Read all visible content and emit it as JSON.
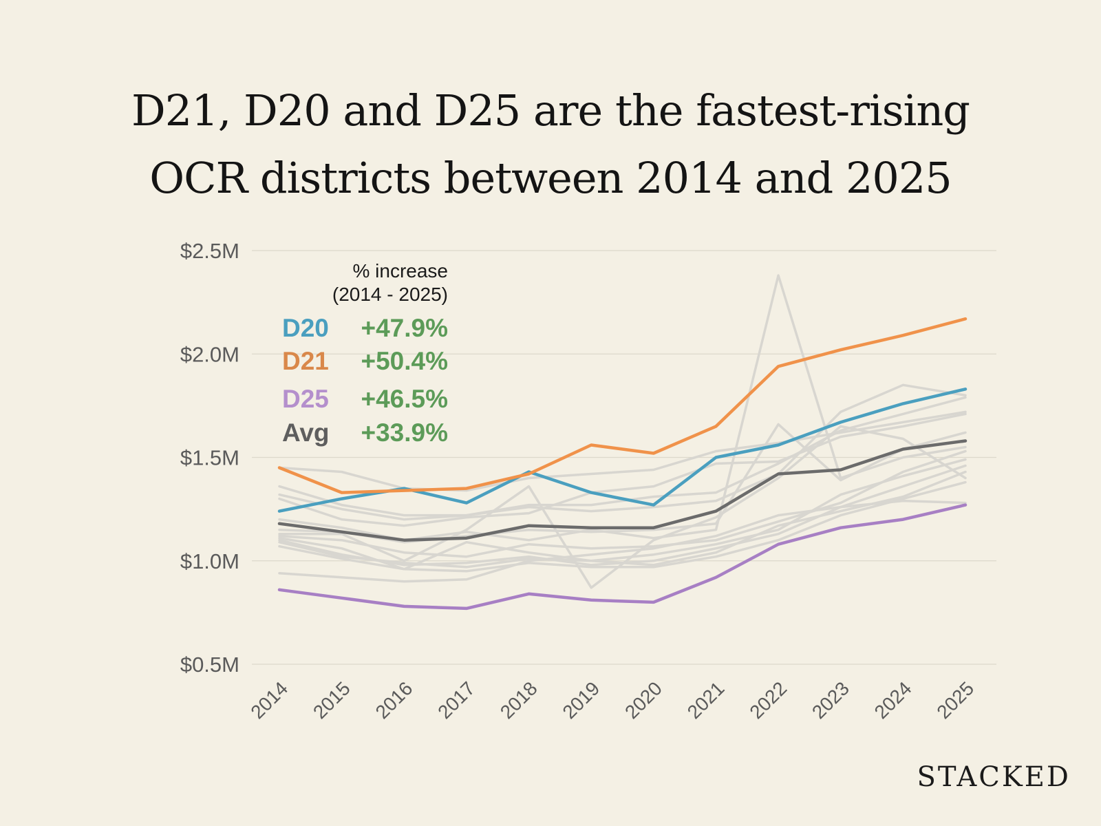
{
  "title": {
    "line1": "D21, D20 and D25 are the fastest-rising",
    "line2": "OCR districts between 2014 and 2025"
  },
  "brand": "STACKED",
  "chart_data": {
    "type": "line",
    "title": "D21, D20 and D25 are the fastest-rising OCR districts between 2014 and 2025",
    "xlabel": "",
    "ylabel": "",
    "x": [
      "2014",
      "2015",
      "2016",
      "2017",
      "2018",
      "2019",
      "2020",
      "2021",
      "2022",
      "2023",
      "2024",
      "2025"
    ],
    "ylim": [
      0.5,
      2.5
    ],
    "yticks": [
      2.5,
      2.0,
      1.5,
      1.0,
      0.5
    ],
    "ytick_labels": [
      "$2.5M",
      "$2.0M",
      "$1.5M",
      "$1.0M",
      "$0.5M"
    ],
    "grid": true,
    "legend": {
      "placement": "top-left",
      "title_line1": "% increase",
      "title_line2": "(2014 - 2025)",
      "entries": [
        {
          "name": "D20",
          "value": "+47.9%",
          "color": "#4a9fbf"
        },
        {
          "name": "D21",
          "value": "+50.4%",
          "color": "#d9884a"
        },
        {
          "name": "D25",
          "value": "+46.5%",
          "color": "#b48fcc"
        },
        {
          "name": "Avg",
          "value": "+33.9%",
          "color": "#5e5e5e"
        }
      ]
    },
    "background_color": "#d8d6d0",
    "background_series": [
      [
        1.45,
        1.43,
        1.35,
        1.34,
        1.4,
        1.42,
        1.44,
        1.53,
        1.57,
        1.62,
        1.67,
        1.72
      ],
      [
        1.36,
        1.27,
        1.22,
        1.22,
        1.27,
        1.27,
        1.31,
        1.33,
        1.47,
        1.63,
        1.71,
        1.79
      ],
      [
        1.32,
        1.25,
        1.2,
        1.22,
        1.26,
        1.24,
        1.26,
        1.29,
        1.42,
        1.72,
        1.85,
        1.8
      ],
      [
        1.3,
        1.2,
        1.17,
        1.21,
        1.23,
        1.33,
        1.36,
        1.47,
        1.48,
        1.6,
        1.65,
        1.71
      ],
      [
        1.2,
        1.16,
        1.1,
        1.14,
        1.1,
        1.15,
        1.11,
        1.15,
        2.38,
        1.4,
        1.5,
        1.55
      ],
      [
        1.15,
        1.14,
        1.09,
        1.12,
        1.15,
        1.14,
        1.15,
        1.18,
        1.66,
        1.39,
        1.54,
        1.62
      ],
      [
        1.13,
        1.13,
        1.0,
        1.15,
        1.36,
        0.87,
        1.1,
        1.21,
        1.4,
        1.65,
        1.59,
        1.4
      ],
      [
        1.12,
        1.1,
        1.04,
        1.02,
        1.08,
        1.06,
        1.07,
        1.1,
        1.19,
        1.28,
        1.43,
        1.53
      ],
      [
        1.11,
        1.06,
        0.96,
        1.09,
        1.04,
        1.0,
        1.03,
        1.08,
        1.15,
        1.32,
        1.41,
        1.49
      ],
      [
        1.1,
        1.03,
        0.98,
        0.99,
        1.02,
        0.98,
        1.0,
        1.06,
        1.13,
        1.26,
        1.36,
        1.46
      ],
      [
        1.09,
        1.02,
        0.99,
        0.97,
        1.01,
        1.0,
        0.98,
        1.04,
        1.17,
        1.24,
        1.31,
        1.43
      ],
      [
        1.07,
        1.01,
        0.96,
        0.95,
        0.99,
        0.97,
        0.97,
        1.02,
        1.1,
        1.22,
        1.3,
        1.38
      ],
      [
        0.94,
        0.92,
        0.9,
        0.91,
        1.0,
        1.03,
        1.06,
        1.12,
        1.22,
        1.26,
        1.29,
        1.28
      ]
    ],
    "series": [
      {
        "name": "D20",
        "color": "#4a9fbf",
        "values": [
          1.24,
          1.3,
          1.35,
          1.28,
          1.43,
          1.33,
          1.27,
          1.5,
          1.56,
          1.67,
          1.76,
          1.83
        ]
      },
      {
        "name": "D21",
        "color": "#f0924a",
        "values": [
          1.45,
          1.33,
          1.34,
          1.35,
          1.42,
          1.56,
          1.52,
          1.65,
          1.94,
          2.02,
          2.09,
          2.17
        ]
      },
      {
        "name": "D25",
        "color": "#a77fc4",
        "values": [
          0.86,
          0.82,
          0.78,
          0.77,
          0.84,
          0.81,
          0.8,
          0.92,
          1.08,
          1.16,
          1.2,
          1.27
        ]
      },
      {
        "name": "Avg",
        "color": "#6b6b6b",
        "values": [
          1.18,
          1.14,
          1.1,
          1.11,
          1.17,
          1.16,
          1.16,
          1.24,
          1.42,
          1.44,
          1.54,
          1.58
        ]
      }
    ]
  }
}
